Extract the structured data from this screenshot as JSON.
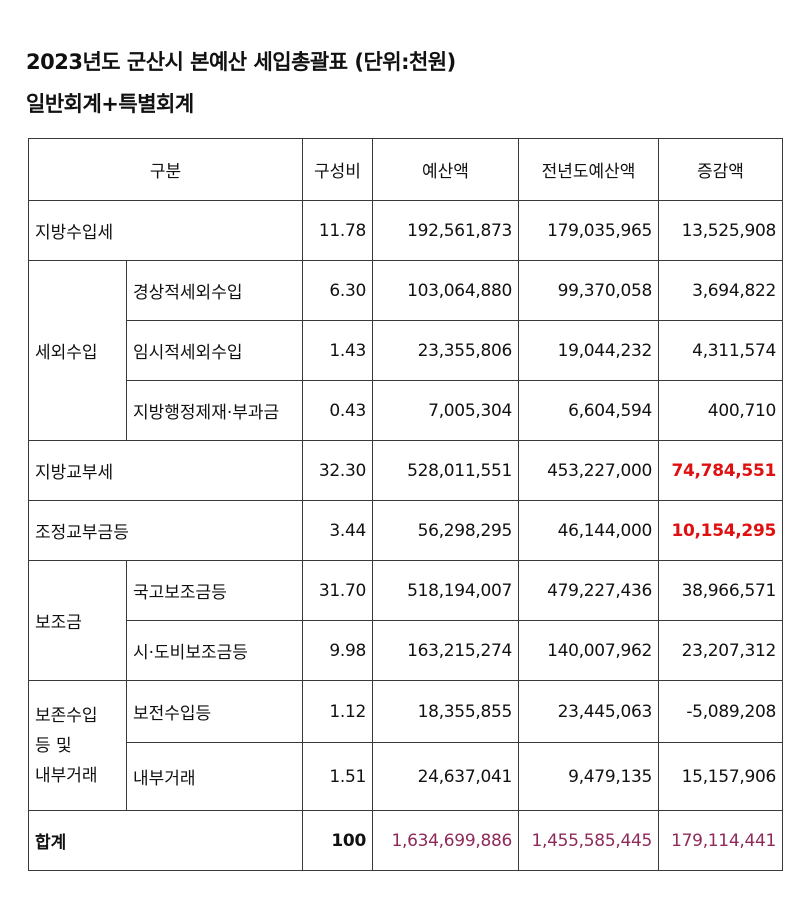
{
  "title": {
    "line1": "2023년도 군산시 본예산 세입총괄표 (단위:천원)",
    "line2": "일반회계+특별회계"
  },
  "table": {
    "headers": {
      "category": "구분",
      "ratio": "구성비",
      "budget": "예산액",
      "prev_budget": "전년도예산액",
      "change": "증감액"
    },
    "rows": {
      "local_tax": {
        "label": "지방수입세",
        "ratio": "11.78",
        "budget": "192,561,873",
        "prev": "179,035,965",
        "change": "13,525,908"
      },
      "non_tax_group": "세외수입",
      "recurring_non_tax": {
        "label": "경상적세외수입",
        "ratio": "6.30",
        "budget": "103,064,880",
        "prev": "99,370,058",
        "change": "3,694,822"
      },
      "temporary_non_tax": {
        "label": "임시적세외수입",
        "ratio": "1.43",
        "budget": "23,355,806",
        "prev": "19,044,232",
        "change": "4,311,574"
      },
      "penalties": {
        "label": "지방행정제재·부과금",
        "ratio": "0.43",
        "budget": "7,005,304",
        "prev": "6,604,594",
        "change": "400,710"
      },
      "local_grant": {
        "label": "지방교부세",
        "ratio": "32.30",
        "budget": "528,011,551",
        "prev": "453,227,000",
        "change": "74,784,551"
      },
      "adjust_grant": {
        "label": "조정교부금등",
        "ratio": "3.44",
        "budget": "56,298,295",
        "prev": "46,144,000",
        "change": "10,154,295"
      },
      "subsidy_group": "보조금",
      "national_subsidy": {
        "label": "국고보조금등",
        "ratio": "31.70",
        "budget": "518,194,007",
        "prev": "479,227,436",
        "change": "38,966,571"
      },
      "province_subsidy": {
        "label": "시·도비보조금등",
        "ratio": "9.98",
        "budget": "163,215,274",
        "prev": "140,007,962",
        "change": "23,207,312"
      },
      "reserve_group": {
        "line1": "보존수입",
        "line2": "등 및",
        "line3": "내부거래"
      },
      "reserve_income": {
        "label": "보전수입등",
        "ratio": "1.12",
        "budget": "18,355,855",
        "prev": "23,445,063",
        "change": "-5,089,208"
      },
      "internal_transfer": {
        "label": "내부거래",
        "ratio": "1.51",
        "budget": "24,637,041",
        "prev": "9,479,135",
        "change": "15,157,906"
      },
      "total": {
        "label": "합계",
        "ratio": "100",
        "budget": "1,634,699,886",
        "prev": "1,455,585,445",
        "change": "179,114,441"
      }
    }
  },
  "colors": {
    "highlight_red": "#e01010",
    "total_purple": "#8e2a5a"
  }
}
